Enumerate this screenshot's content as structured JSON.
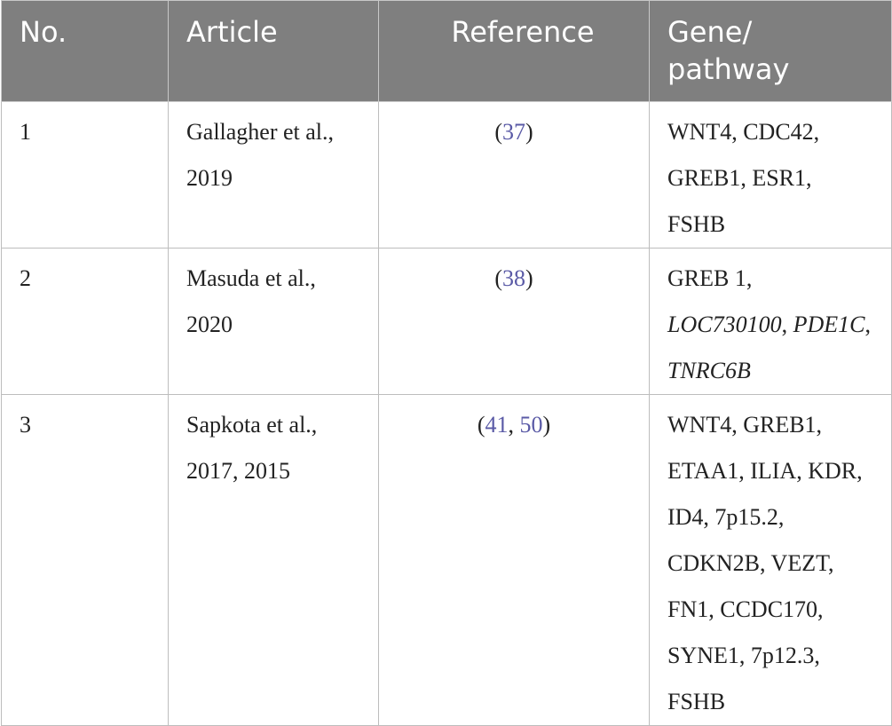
{
  "table": {
    "header": [
      "No.",
      "Article",
      "Reference",
      "Gene/\npathway"
    ],
    "rows": [
      [
        [
          {
            "text": "1"
          }
        ],
        [
          {
            "text": "Gallagher et al., 2019"
          }
        ],
        [
          {
            "text": "("
          },
          {
            "text": "37",
            "style": "link"
          },
          {
            "text": ")"
          }
        ],
        [
          {
            "text": "WNT4, CDC42, GREB1, ESR1, FSHB"
          }
        ]
      ],
      [
        [
          {
            "text": "2"
          }
        ],
        [
          {
            "text": "Masuda et al., 2020"
          }
        ],
        [
          {
            "text": "("
          },
          {
            "text": "38",
            "style": "link"
          },
          {
            "text": ")"
          }
        ],
        [
          {
            "text": "GREB 1, "
          },
          {
            "text": "LOC730100",
            "style": "italic"
          },
          {
            "text": ", "
          },
          {
            "text": "PDE1C",
            "style": "italic"
          },
          {
            "text": ", "
          },
          {
            "text": "TNRC6B",
            "style": "italic"
          }
        ]
      ],
      [
        [
          {
            "text": "3"
          }
        ],
        [
          {
            "text": "Sapkota et al., 2017, 2015"
          }
        ],
        [
          {
            "text": "("
          },
          {
            "text": "41",
            "style": "link"
          },
          {
            "text": ", "
          },
          {
            "text": "50",
            "style": "link"
          },
          {
            "text": ")"
          }
        ],
        [
          {
            "text": "WNT4, GREB1, ETAA1, ILIA, KDR, ID4, 7p15.2, CDKN2B, VEZT, FN1, CCDC170, SYNE1, 7p12.3, FSHB"
          }
        ]
      ]
    ]
  }
}
